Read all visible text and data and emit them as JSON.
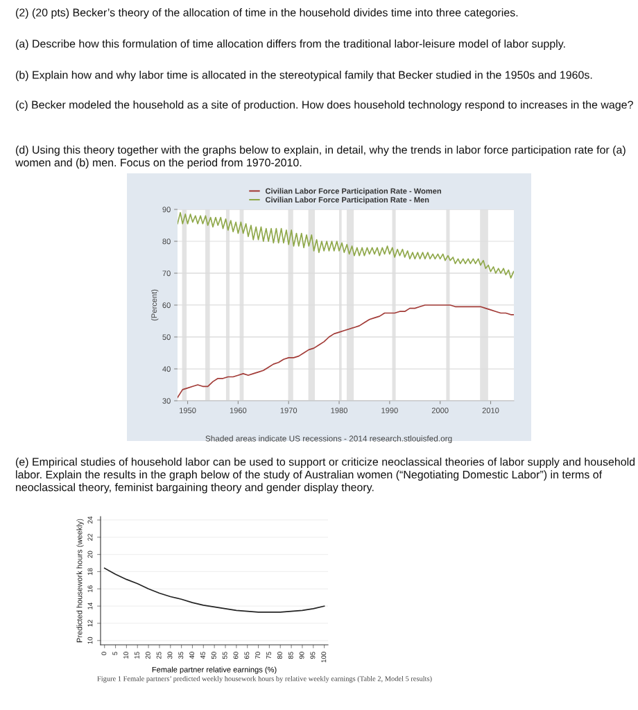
{
  "chart_data": [
    {
      "type": "line",
      "ylabel": "(Percent)",
      "annotations": [
        "(2) (20 pts) Becker’s theory of the allocation of time in the household divides time into three categories.",
        "(a) Describe how this formulation of time allocation differs from the traditional labor-leisure model of labor supply.",
        "(b) Explain how and why labor time is allocated in the stereotypical family that Becker studied in the 1950s and 1960s.",
        "(c) Becker modeled the household as a site of production. How does household technology respond to increases in the wage?",
        "(d) Using this theory together with the graphs below to explain, in detail, why the trends in labor force participation rate for (a) women and (b) men. Focus on the period from 1970-2010.",
        "Shaded areas indicate US recessions - 2014 research.stlouisfed.org"
      ],
      "series": [
        {
          "name": "Civilian Labor Force Participation Rate - Women",
          "color": "#a23b37",
          "x": [
            1948,
            1949,
            1950,
            1951,
            1952,
            1953,
            1954,
            1955,
            1956,
            1957,
            1958,
            1959,
            1960,
            1961,
            1962,
            1963,
            1964,
            1965,
            1966,
            1967,
            1968,
            1969,
            1970,
            1971,
            1972,
            1973,
            1974,
            1975,
            1976,
            1977,
            1978,
            1979,
            1980,
            1981,
            1982,
            1983,
            1984,
            1985,
            1986,
            1987,
            1988,
            1989,
            1990,
            1991,
            1992,
            1993,
            1994,
            1995,
            1996,
            1997,
            1998,
            1999,
            2000,
            2001,
            2002,
            2003,
            2004,
            2005,
            2006,
            2007,
            2008,
            2009,
            2010,
            2011,
            2012,
            2013,
            2014,
            2014.6
          ],
          "values": [
            31,
            33.5,
            34,
            34.5,
            35,
            34.5,
            34.5,
            36,
            37,
            37,
            37.5,
            37.5,
            38,
            38.5,
            38,
            38.5,
            39,
            39.5,
            40.5,
            41.5,
            42,
            43,
            43.5,
            43.5,
            44,
            45,
            46,
            46.5,
            47.5,
            48.5,
            50,
            51,
            51.5,
            52,
            52.5,
            53,
            53.5,
            54.5,
            55.5,
            56,
            56.5,
            57.5,
            57.5,
            57.5,
            58,
            58,
            59,
            59,
            59.5,
            60,
            60,
            60,
            60,
            60,
            60,
            59.5,
            59.5,
            59.5,
            59.5,
            59.5,
            59.5,
            59,
            58.5,
            58,
            57.5,
            57.5,
            57,
            57
          ]
        },
        {
          "name": "Civilian Labor Force Participation Rate - Men",
          "color": "#8fa84a",
          "x": [
            1948,
            1948.55,
            1949,
            1949.55,
            1950,
            1950.55,
            1951,
            1951.55,
            1952,
            1952.55,
            1953,
            1953.55,
            1954,
            1954.55,
            1955,
            1955.55,
            1956,
            1956.55,
            1957,
            1957.55,
            1958,
            1958.55,
            1959,
            1959.55,
            1960,
            1960.55,
            1961,
            1961.55,
            1962,
            1962.55,
            1963,
            1963.55,
            1964,
            1964.55,
            1965,
            1965.55,
            1966,
            1966.55,
            1967,
            1967.55,
            1968,
            1968.55,
            1969,
            1969.55,
            1970,
            1970.55,
            1971,
            1971.55,
            1972,
            1972.55,
            1973,
            1973.55,
            1974,
            1974.55,
            1975,
            1975.55,
            1976,
            1976.55,
            1977,
            1977.55,
            1978,
            1978.55,
            1979,
            1979.55,
            1980,
            1980.55,
            1981,
            1981.55,
            1982,
            1982.55,
            1983,
            1983.55,
            1984,
            1984.55,
            1985,
            1985.55,
            1986,
            1986.55,
            1987,
            1987.55,
            1988,
            1988.55,
            1989,
            1989.55,
            1990,
            1990.55,
            1991,
            1991.55,
            1992,
            1992.55,
            1993,
            1993.55,
            1994,
            1994.55,
            1995,
            1995.55,
            1996,
            1996.55,
            1997,
            1997.55,
            1998,
            1998.55,
            1999,
            1999.55,
            2000,
            2000.55,
            2001,
            2001.55,
            2002,
            2002.55,
            2003,
            2003.55,
            2004,
            2004.55,
            2005,
            2005.55,
            2006,
            2006.55,
            2007,
            2007.55,
            2008,
            2008.55,
            2009,
            2009.55,
            2010,
            2010.55,
            2011,
            2011.55,
            2012,
            2012.55,
            2013,
            2013.55,
            2014,
            2014.55
          ],
          "values": [
            85.5,
            89,
            85.5,
            88.5,
            85.5,
            88.5,
            86,
            88,
            85.5,
            88,
            85.5,
            88,
            85,
            87.5,
            84.5,
            87.5,
            85,
            87.5,
            84,
            87,
            83.5,
            86.5,
            83,
            86,
            82.5,
            86,
            82.5,
            85.5,
            81.5,
            85,
            80.5,
            84.5,
            80.5,
            84.5,
            80,
            84,
            80,
            84,
            79.5,
            84,
            79.5,
            84,
            79.5,
            83.5,
            79,
            83.5,
            78.5,
            82.5,
            78.5,
            82.5,
            78,
            82,
            78.5,
            82,
            77,
            80.5,
            76.5,
            80,
            77,
            80,
            77,
            80,
            77,
            80,
            77,
            79.5,
            76.5,
            79,
            76,
            78.5,
            75.5,
            78,
            75.5,
            78,
            75.5,
            78,
            76,
            78,
            76,
            78,
            75.5,
            78,
            76,
            78.5,
            76,
            78,
            75,
            77.5,
            75.5,
            77.5,
            75,
            77,
            74.5,
            76.5,
            74.5,
            76.5,
            74.5,
            76.5,
            74.5,
            76.5,
            74.5,
            76,
            74.5,
            76,
            74.5,
            76,
            74,
            75.5,
            74,
            75,
            73,
            74.5,
            73,
            74.5,
            73,
            74.5,
            73,
            74.5,
            73,
            74.5,
            72.5,
            74,
            71.5,
            72.5,
            70.5,
            72,
            70,
            71.5,
            70,
            71.5,
            69.5,
            71,
            68.5,
            70.5
          ]
        }
      ],
      "bands": [
        {
          "axis": "x",
          "from": 1948.9,
          "to": 1949.8,
          "color": "#e3e3e3"
        },
        {
          "axis": "x",
          "from": 1953.5,
          "to": 1954.4,
          "color": "#e3e3e3"
        },
        {
          "axis": "x",
          "from": 1957.6,
          "to": 1958.3,
          "color": "#e3e3e3"
        },
        {
          "axis": "x",
          "from": 1960.3,
          "to": 1961.1,
          "color": "#e3e3e3"
        },
        {
          "axis": "x",
          "from": 1969.9,
          "to": 1970.9,
          "color": "#e3e3e3"
        },
        {
          "axis": "x",
          "from": 1973.9,
          "to": 1975.2,
          "color": "#e3e3e3"
        },
        {
          "axis": "x",
          "from": 1980.0,
          "to": 1980.5,
          "color": "#e3e3e3"
        },
        {
          "axis": "x",
          "from": 1981.5,
          "to": 1982.9,
          "color": "#e3e3e3"
        },
        {
          "axis": "x",
          "from": 1990.5,
          "to": 1991.2,
          "color": "#e3e3e3"
        },
        {
          "axis": "x",
          "from": 2001.2,
          "to": 2001.9,
          "color": "#e3e3e3"
        },
        {
          "axis": "x",
          "from": 2007.9,
          "to": 2009.5,
          "color": "#e3e3e3"
        }
      ],
      "xlim": [
        1948,
        2014.6
      ],
      "xticks": [
        1950,
        1960,
        1970,
        1980,
        1990,
        2000,
        2010
      ],
      "ylim": [
        30,
        90
      ],
      "yticks": [
        30,
        40,
        50,
        60,
        70,
        80,
        90
      ],
      "grid": "y",
      "legend": "top"
    },
    {
      "type": "line",
      "xlabel": "Female partner relative earnings (%)",
      "ylabel": "Predicted housework hours (weekly)",
      "annotations": [
        "(e) Empirical studies of household labor can be used to support or criticize neoclassical theories of labor supply and household labor. Explain the results in the graph below of the study of Australian women (“Negotiating Domestic Labor”) in terms of neoclassical theory, feminist bargaining theory and gender display theory.",
        "Figure 1 Female partners’ predicted weekly housework hours by relative weekly earnings (Table 2, Model 5 results)"
      ],
      "series": [
        {
          "color": "#222222",
          "x": [
            0,
            5,
            10,
            15,
            20,
            25,
            30,
            35,
            40,
            45,
            50,
            55,
            60,
            65,
            70,
            75,
            80,
            85,
            90,
            95,
            100
          ],
          "values": [
            18.4,
            17.7,
            17.1,
            16.6,
            16.0,
            15.5,
            15.1,
            14.8,
            14.4,
            14.1,
            13.9,
            13.7,
            13.5,
            13.4,
            13.3,
            13.3,
            13.3,
            13.4,
            13.5,
            13.7,
            14.0
          ]
        }
      ],
      "xlim": [
        -1.8,
        101.7
      ],
      "xticks": [
        0,
        5,
        10,
        15,
        20,
        25,
        30,
        35,
        40,
        45,
        50,
        55,
        60,
        65,
        70,
        75,
        80,
        85,
        90,
        95,
        100
      ],
      "ylim": [
        9.5,
        24.4
      ],
      "yticks": [
        10,
        12,
        14,
        16,
        18,
        20,
        22,
        24
      ],
      "grid": "y"
    }
  ]
}
